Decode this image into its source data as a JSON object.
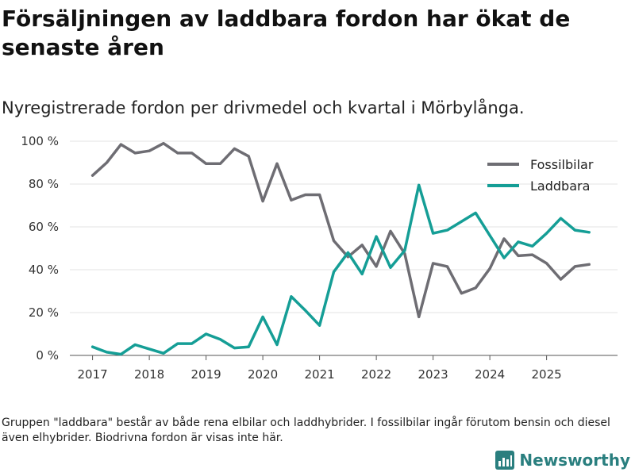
{
  "title": "Försäljningen av laddbara fordon har ökat de senaste åren",
  "subtitle": "Nyregistrerade fordon per drivmedel och kvartal i Mörbylånga.",
  "footnote": "Gruppen \"laddbara\" består av både rena elbilar och laddhybrider. I fossilbilar ingår förutom bensin och diesel även elhybrider. Biodrivna fordon är visas inte här.",
  "brand": {
    "name": "Newsworthy",
    "logo_icon": "bar-chart-logo-icon",
    "color": "#2a7f7f"
  },
  "chart_data": {
    "type": "line",
    "title": "Nyregistrerade fordon per drivmedel och kvartal i Mörbylånga.",
    "xlabel": "",
    "ylabel": "",
    "ylim": [
      0,
      100
    ],
    "xlim": [
      2016.6,
      2026.25
    ],
    "grid": true,
    "legend_position": "top-right",
    "y_ticks": [
      0,
      20,
      40,
      60,
      80,
      100
    ],
    "y_tick_labels": [
      "0 %",
      "20 %",
      "40 %",
      "60 %",
      "80 %",
      "100 %"
    ],
    "x_ticks": [
      2017,
      2018,
      2019,
      2020,
      2021,
      2022,
      2023,
      2024,
      2025
    ],
    "x_tick_labels": [
      "2017",
      "2018",
      "2019",
      "2020",
      "2021",
      "2022",
      "2023",
      "2024",
      "2025"
    ],
    "x": [
      2017.0,
      2017.25,
      2017.5,
      2017.75,
      2018.0,
      2018.25,
      2018.5,
      2018.75,
      2019.0,
      2019.25,
      2019.5,
      2019.75,
      2020.0,
      2020.25,
      2020.5,
      2020.75,
      2021.0,
      2021.25,
      2021.5,
      2021.75,
      2022.0,
      2022.25,
      2022.5,
      2022.75,
      2023.0,
      2023.25,
      2023.5,
      2023.75,
      2024.0,
      2024.25,
      2024.5,
      2024.75,
      2025.0,
      2025.25,
      2025.5,
      2025.75
    ],
    "series": [
      {
        "name": "Fossilbilar",
        "color": "#6e6d73",
        "values": [
          84,
          90,
          98.5,
          94.5,
          95.5,
          99,
          94.5,
          94.5,
          89.5,
          89.5,
          96.5,
          93,
          72,
          89.5,
          72.5,
          75,
          75,
          53.5,
          46,
          51.5,
          41.5,
          58,
          47.5,
          18,
          43,
          41.5,
          29,
          31.5,
          40.5,
          54.5,
          46.5,
          47,
          43,
          35.5,
          41.5,
          42.5
        ]
      },
      {
        "name": "Laddbara",
        "color": "#159e96",
        "values": [
          4,
          1.5,
          0.5,
          5,
          3,
          1,
          5.5,
          5.5,
          10,
          7.5,
          3.5,
          4,
          18,
          5,
          27.5,
          21,
          14,
          39,
          48,
          38,
          55.5,
          41,
          49,
          79.5,
          57,
          58.5,
          62.5,
          66.5,
          56,
          45.5,
          53,
          51,
          57,
          64,
          58.5,
          57.5
        ]
      }
    ]
  }
}
